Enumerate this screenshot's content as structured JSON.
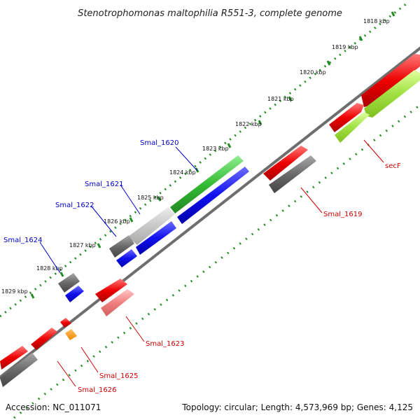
{
  "title": "Stenotrophomonas maltophilia R551-3, complete genome",
  "accession": "Accession: NC_011071",
  "summary": "Topology: circular; Length: 4,573,969 bp; Genes: 4,125",
  "colors": {
    "backbone": "#808080",
    "tick": "#228b22",
    "forward_label": "#0000cc",
    "reverse_label": "#cc0000"
  },
  "ticks": [
    "1818 kbp",
    "1819 kbp",
    "1820 kbp",
    "1821 kbp",
    "1822 kbp",
    "1823 kbp",
    "1824 kbp",
    "1825 kbp",
    "1826 kbp",
    "1827 kbp",
    "1828 kbp",
    "1829 kbp"
  ],
  "gene_labels": {
    "smal_1620": "Smal_1620",
    "smal_1621": "Smal_1621",
    "smal_1622": "Smal_1622",
    "smal_1624": "Smal_1624",
    "secf": "secF",
    "smal_1619": "Smal_1619",
    "smal_1623": "Smal_1623",
    "smal_1625": "Smal_1625",
    "smal_1626": "Smal_1626"
  }
}
